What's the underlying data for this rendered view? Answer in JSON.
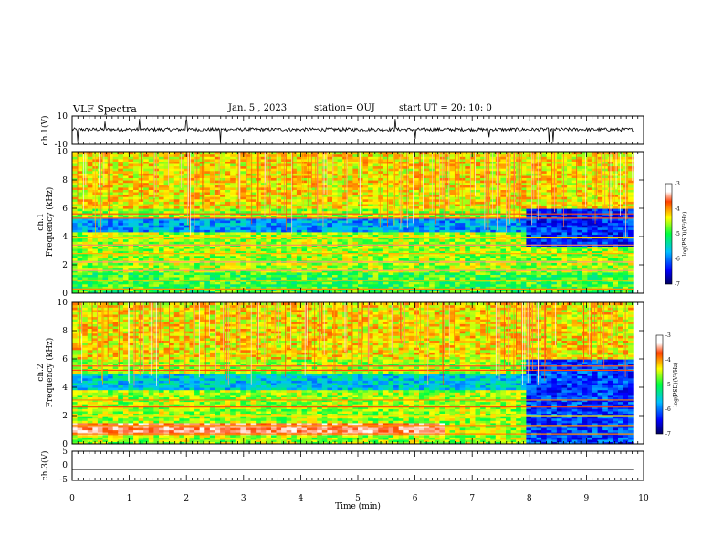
{
  "header": {
    "title": "VLF Spectra",
    "date": "Jan. 5 , 2023",
    "station": "station= OUJ",
    "start": "start UT =  20: 10: 0"
  },
  "chart_data": [
    {
      "type": "line",
      "panel": "ch1-waveform",
      "ylabel": "ch.1(V)",
      "ylim": [
        -10,
        10
      ],
      "yticks": [
        "10",
        "-10"
      ],
      "x_range_min": [
        0,
        9.82
      ],
      "note_values": "waveform noise around a slightly positive baseline with sporadic spikes",
      "baseline_v": 0.5,
      "noise_v": 1.2,
      "spikes": [
        {
          "t": 0.1,
          "v": -8
        },
        {
          "t": 0.58,
          "v": 6
        },
        {
          "t": 1.18,
          "v": 8
        },
        {
          "t": 2.0,
          "v": 7
        },
        {
          "t": 2.6,
          "v": -9
        },
        {
          "t": 5.65,
          "v": 8
        },
        {
          "t": 6.0,
          "v": -6
        },
        {
          "t": 7.3,
          "v": -5
        },
        {
          "t": 8.35,
          "v": -9
        },
        {
          "t": 8.42,
          "v": -8
        }
      ]
    },
    {
      "type": "heatmap",
      "panel": "ch1-spectrogram",
      "ylabel_line1": "ch.1",
      "ylabel_line2": "Frequency (kHz)",
      "ylim": [
        0,
        10
      ],
      "yticks": [
        "0",
        "2",
        "4",
        "6",
        "8",
        "10"
      ],
      "colorbar": {
        "label": "log(PSD)(V²/Hz)",
        "range": [
          -7,
          -3
        ],
        "ticks": [
          "-3",
          "-4",
          "-5",
          "-6",
          "-7"
        ]
      },
      "regions": [
        {
          "t": [
            0,
            7.9
          ],
          "f": [
            4.2,
            5.2
          ],
          "level": -5.8
        },
        {
          "t": [
            7.9,
            9.82
          ],
          "f": [
            3.2,
            6.0
          ],
          "level": -6.3
        },
        {
          "t": [
            0,
            9.82
          ],
          "f": [
            0.0,
            1.5
          ],
          "level": -4.9
        },
        {
          "t": [
            0,
            9.82
          ],
          "f": [
            6.0,
            10.0
          ],
          "level": -4.3
        }
      ],
      "bands_khz": [
        0.3,
        0.9,
        1.6,
        2.2,
        2.8,
        3.4,
        3.9,
        5.3,
        5.6
      ]
    },
    {
      "type": "heatmap",
      "panel": "ch2-spectrogram",
      "ylabel_line1": "ch.2",
      "ylabel_line2": "Frequency (kHz)",
      "ylim": [
        0,
        10
      ],
      "yticks": [
        "0",
        "2",
        "4",
        "6",
        "8",
        "10"
      ],
      "colorbar": {
        "label": "log(PSD)(V²/Hz)",
        "range": [
          -7,
          -3
        ],
        "ticks": [
          "-3",
          "-4",
          "-5",
          "-6",
          "-7"
        ]
      },
      "regions": [
        {
          "t": [
            0,
            7.9
          ],
          "f": [
            3.8,
            5.0
          ],
          "level": -5.6
        },
        {
          "t": [
            7.9,
            9.82
          ],
          "f": [
            0.0,
            6.5
          ],
          "level": -6.2
        },
        {
          "t": [
            0,
            6.5
          ],
          "f": [
            0.6,
            1.5
          ],
          "level": -3.4
        },
        {
          "t": [
            0,
            9.82
          ],
          "f": [
            6.0,
            10.0
          ],
          "level": -4.3
        }
      ],
      "bands_khz": [
        0.7,
        1.3,
        2.0,
        2.6,
        3.1,
        5.2,
        5.5
      ]
    },
    {
      "type": "line",
      "panel": "ch3-waveform",
      "ylabel": "ch.3(V)",
      "ylim": [
        -5,
        5
      ],
      "yticks": [
        "5",
        "0",
        "-5"
      ],
      "x_range_min": [
        0,
        9.82
      ],
      "constant_v": -1.2
    }
  ],
  "xaxis": {
    "label": "Time (min)",
    "range": [
      0,
      10
    ],
    "ticks": [
      "0",
      "1",
      "2",
      "3",
      "4",
      "5",
      "6",
      "7",
      "8",
      "9",
      "10"
    ]
  }
}
